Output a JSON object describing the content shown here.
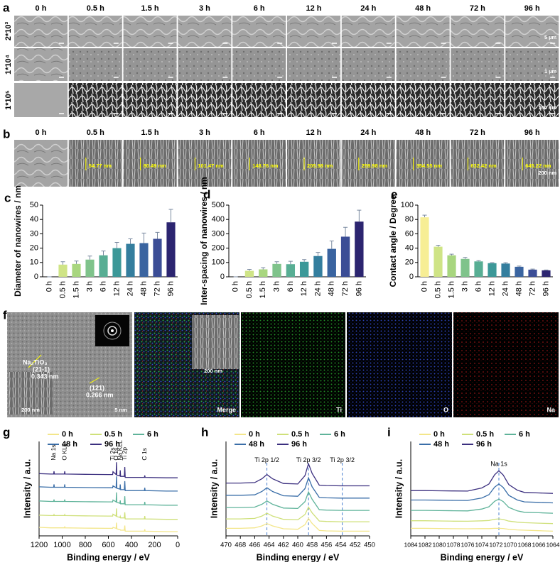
{
  "panel_labels": [
    "a",
    "b",
    "c",
    "d",
    "e",
    "f",
    "g",
    "h",
    "i"
  ],
  "sem": {
    "times": [
      "0 h",
      "0.5 h",
      "1.5 h",
      "3 h",
      "6 h",
      "12 h",
      "24 h",
      "48 h",
      "72 h",
      "96 h"
    ],
    "rows": [
      "2*10³",
      "1*10⁴",
      "1*10⁵"
    ],
    "scale_bars": [
      "5 µm",
      "1 µm",
      "100 nm"
    ]
  },
  "cross_section": {
    "times": [
      "0 h",
      "0.5 h",
      "1.5 h",
      "3 h",
      "6 h",
      "12 h",
      "24 h",
      "48 h",
      "72 h",
      "96 h"
    ],
    "measurements": [
      "54.77 nm",
      "80.49 nm",
      "101.47 nm",
      "148.76 nm",
      "205.98 nm",
      "259.98 nm",
      "354.55 nm",
      "632.42 nm",
      "645.22 nm"
    ],
    "scale_bar": "200 nm"
  },
  "tem": {
    "phase": "Na₂TiO₃",
    "plane_1": "(21-1)",
    "spacing_1": "0.343 nm",
    "plane_2": "(121)",
    "spacing_2": "0.266 nm",
    "scale_inset": "200 nm",
    "scale_main": "5 nm"
  },
  "mapping": {
    "labels": [
      "Merge",
      "Ti",
      "O",
      "Na"
    ],
    "scale": "200 nm"
  },
  "chart_data": [
    {
      "type": "bar",
      "ylabel": "Diameter of nanowires / nm",
      "categories": [
        "0 h",
        "0.5 h",
        "1.5 h",
        "3 h",
        "6 h",
        "12 h",
        "24 h",
        "48 h",
        "72 h",
        "96 h"
      ],
      "values": [
        0,
        8.5,
        9,
        12,
        15,
        20,
        23,
        23.5,
        26.5,
        38
      ],
      "errors": [
        0,
        2,
        2,
        2.5,
        3,
        4,
        3.5,
        7,
        4.5,
        9
      ],
      "colors": [
        "#f7ee95",
        "#cfe486",
        "#a8d67f",
        "#7fc38b",
        "#58ae94",
        "#3c9898",
        "#347e9e",
        "#3a64a0",
        "#3b4d96",
        "#2c2570"
      ],
      "ylim": [
        0,
        50
      ],
      "yticks": [
        0,
        10,
        20,
        30,
        40,
        50
      ]
    },
    {
      "type": "bar",
      "ylabel": "Inter-spacing of nanowires / nm",
      "categories": [
        "0 h",
        "0.5 h",
        "1.5 h",
        "3 h",
        "6 h",
        "12 h",
        "24 h",
        "48 h",
        "72 h",
        "96 h"
      ],
      "values": [
        0,
        42,
        52,
        90,
        88,
        105,
        145,
        195,
        280,
        385
      ],
      "errors": [
        0,
        10,
        12,
        15,
        20,
        15,
        25,
        55,
        65,
        80
      ],
      "colors": [
        "#f7ee95",
        "#cfe486",
        "#a8d67f",
        "#7fc38b",
        "#58ae94",
        "#3c9898",
        "#347e9e",
        "#3a64a0",
        "#3b4d96",
        "#2c2570"
      ],
      "ylim": [
        0,
        500
      ],
      "yticks": [
        0,
        100,
        200,
        300,
        400,
        500
      ]
    },
    {
      "type": "bar",
      "ylabel": "Contact angle / Degree",
      "categories": [
        "0 h",
        "0.5 h",
        "1.5 h",
        "3 h",
        "6 h",
        "12 h",
        "24 h",
        "48 h",
        "72 h",
        "96 h"
      ],
      "values": [
        83,
        42,
        30,
        25,
        21.5,
        19,
        18.5,
        14,
        10,
        9
      ],
      "errors": [
        3,
        2,
        1.5,
        2,
        1,
        0.8,
        1.2,
        1,
        0.8,
        0.5
      ],
      "colors": [
        "#f7ee95",
        "#cfe486",
        "#a8d67f",
        "#7fc38b",
        "#58ae94",
        "#3c9898",
        "#347e9e",
        "#3a64a0",
        "#3b4d96",
        "#2c2570"
      ],
      "ylim": [
        0,
        100
      ],
      "yticks": [
        0,
        20,
        40,
        60,
        80,
        100
      ]
    },
    {
      "type": "line",
      "xlabel": "Binding energy / eV",
      "ylabel": "Intensity / a.u.",
      "x": [
        1200,
        1100,
        1074,
        1071,
        1068,
        1000,
        981,
        978,
        975,
        800,
        600,
        563,
        560,
        533,
        530,
        527,
        500,
        497,
        494,
        462,
        458,
        454,
        300,
        288,
        285,
        282,
        100,
        0
      ],
      "series": [
        {
          "name": "0 h",
          "color": "#f3e68a",
          "values": [
            9,
            8.5,
            8.5,
            8.5,
            8.5,
            8.5,
            8.5,
            9.5,
            8.5,
            8.2,
            8,
            8,
            9,
            8,
            14,
            7.5,
            6.5,
            6.5,
            6,
            6,
            11,
            5,
            5,
            5,
            7,
            5,
            4.5,
            4.5
          ]
        },
        {
          "name": "0.5 h",
          "color": "#cfe07a",
          "values": [
            22,
            21.5,
            21.5,
            22.5,
            21.5,
            21.5,
            21.5,
            22.5,
            21.5,
            21.2,
            21,
            21,
            23,
            21,
            29,
            20.5,
            19.5,
            20.5,
            19,
            19,
            25,
            18,
            18,
            18,
            21,
            18,
            17.5,
            17.5
          ]
        },
        {
          "name": "6 h",
          "color": "#5fb39a",
          "values": [
            37,
            36.5,
            36.5,
            38.5,
            36.5,
            36.5,
            36.5,
            38.5,
            36.5,
            36.2,
            36,
            36,
            38,
            36,
            46,
            35.5,
            34.5,
            37.5,
            34,
            34,
            42,
            33,
            33,
            33,
            36,
            33,
            32.5,
            32.5
          ]
        },
        {
          "name": "48 h",
          "color": "#3a6ea8",
          "values": [
            52,
            51.5,
            51.5,
            54.5,
            51.5,
            51.5,
            51.5,
            54.5,
            51.5,
            51.2,
            51,
            51,
            53,
            51,
            63,
            50.5,
            49.5,
            54.5,
            49,
            49,
            58,
            48,
            48,
            48,
            51,
            48,
            47.5,
            47.5
          ]
        },
        {
          "name": "96 h",
          "color": "#3b2f7f",
          "values": [
            66,
            65.5,
            65.5,
            68.5,
            65.5,
            65.5,
            65.5,
            68.5,
            65.5,
            65.2,
            65,
            65,
            68,
            65,
            78,
            64.5,
            63.5,
            69.5,
            63,
            63,
            73,
            62,
            62,
            62,
            64,
            62,
            61.5,
            61.5
          ]
        }
      ],
      "xlim": [
        1200,
        0
      ],
      "xticks": [
        1200,
        1000,
        800,
        600,
        400,
        200,
        0
      ],
      "ylim": [
        0,
        85
      ],
      "annotations": [
        {
          "text": "Na 1s",
          "x": 1071
        },
        {
          "text": "O KLL",
          "x": 978
        },
        {
          "text": "Ti 2s",
          "x": 560
        },
        {
          "text": "O 1s",
          "x": 530
        },
        {
          "text": "Na KLL",
          "x": 497
        },
        {
          "text": "Ti 2p",
          "x": 458
        },
        {
          "text": "C 1s",
          "x": 285
        }
      ],
      "vlines": []
    },
    {
      "type": "line",
      "xlabel": "Binding energy / eV",
      "ylabel": "Intensity / a.u.",
      "x": [
        470,
        468,
        466,
        465,
        464.3,
        463.5,
        462,
        460,
        459,
        458.5,
        458,
        457,
        456,
        454,
        452,
        450
      ],
      "series": [
        {
          "name": "0 h",
          "color": "#f3e68a",
          "values": [
            8,
            8,
            8.5,
            10.5,
            13,
            10.5,
            7.5,
            7,
            11.8,
            18.5,
            13.2,
            5.7,
            5.3,
            5,
            5,
            5
          ]
        },
        {
          "name": "0.5 h",
          "color": "#cfe07a",
          "values": [
            18,
            18,
            18.5,
            21,
            24,
            21,
            17.5,
            17,
            22.6,
            30.5,
            24.4,
            15.7,
            15.3,
            15,
            15,
            15
          ]
        },
        {
          "name": "6 h",
          "color": "#5fb39a",
          "values": [
            30,
            30,
            30.5,
            33.5,
            37,
            33.5,
            29.5,
            29,
            36.2,
            46.5,
            38.8,
            27.7,
            27.3,
            27,
            27,
            27
          ]
        },
        {
          "name": "48 h",
          "color": "#3a6ea8",
          "values": [
            43,
            43,
            43.5,
            47,
            51,
            47,
            42.5,
            42,
            50,
            61.5,
            52,
            40.7,
            40.3,
            40,
            40,
            40
          ]
        },
        {
          "name": "96 h",
          "color": "#3b2f7f",
          "values": [
            56,
            56,
            56.5,
            60.5,
            65,
            60.5,
            55.5,
            55,
            63.8,
            76.5,
            66.2,
            53.7,
            53.3,
            53,
            53,
            53
          ]
        }
      ],
      "xlim": [
        470,
        450
      ],
      "xticks": [
        470,
        468,
        466,
        464,
        462,
        460,
        458,
        456,
        454,
        452,
        450
      ],
      "ylim": [
        0,
        85
      ],
      "annotations": [
        {
          "text": "Ti 2p 1/2",
          "x": 464.3
        },
        {
          "text": "Ti 2p 3/2",
          "x": 458.5
        },
        {
          "text": "Ti 2p 3/2",
          "x": 453.8
        }
      ],
      "vlines": [
        464.3,
        458.5,
        453.8
      ]
    },
    {
      "type": "line",
      "xlabel": "Binding energy / eV",
      "ylabel": "Intensity / a.u.",
      "x": [
        1084,
        1082,
        1080,
        1078,
        1076,
        1074,
        1073,
        1072.2,
        1071.6,
        1071,
        1070.2,
        1069,
        1068,
        1066,
        1064
      ],
      "series": [
        {
          "name": "0 h",
          "color": "#f3e68a",
          "values": [
            8,
            8,
            7.8,
            7.6,
            7.5,
            7.65,
            7.65,
            8,
            8,
            7.8,
            6.95,
            6.3,
            6,
            5.5,
            5
          ]
        },
        {
          "name": "0.5 h",
          "color": "#cfe07a",
          "values": [
            16,
            16,
            15.8,
            15.6,
            15.5,
            15.95,
            16.35,
            17.6,
            18,
            17.4,
            15.65,
            14.5,
            14,
            13.5,
            13
          ]
        },
        {
          "name": "6 h",
          "color": "#5fb39a",
          "values": [
            27,
            27,
            26.8,
            26.6,
            26.5,
            28.45,
            30.85,
            36.6,
            39,
            36.4,
            30.15,
            26.5,
            25,
            24.5,
            24
          ]
        },
        {
          "name": "48 h",
          "color": "#3a6ea8",
          "values": [
            38,
            38,
            37.8,
            37.6,
            37.5,
            40.2,
            43.6,
            51.6,
            55,
            51.4,
            42.9,
            38,
            36,
            35.5,
            35
          ]
        },
        {
          "name": "96 h",
          "color": "#3b2f7f",
          "values": [
            48,
            48,
            47.8,
            47.6,
            47.5,
            50.8,
            55,
            64.8,
            69,
            64.6,
            54.3,
            48.4,
            46,
            45.5,
            45
          ]
        }
      ],
      "xlim": [
        1084,
        1064
      ],
      "xticks": [
        1084,
        1082,
        1080,
        1078,
        1076,
        1074,
        1072,
        1070,
        1068,
        1066,
        1064
      ],
      "ylim": [
        0,
        85
      ],
      "annotations": [
        {
          "text": "Na 1s",
          "x": 1071.6
        }
      ],
      "vlines": [
        1071.6
      ]
    }
  ]
}
